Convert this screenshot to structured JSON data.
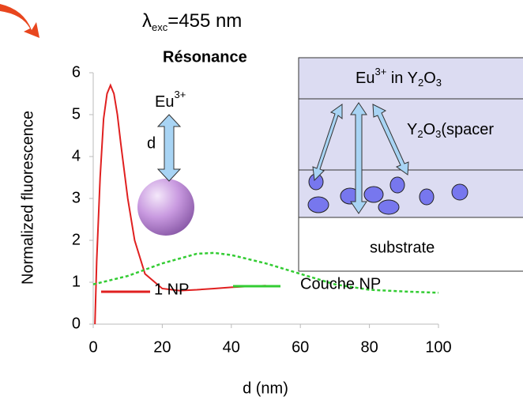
{
  "chart_data": {
    "type": "line",
    "title": {
      "base": "λ",
      "sub": "exc",
      "rest": "=455 nm"
    },
    "subtitle": "Résonance",
    "subtitle_color": "#e8461e",
    "x_label": "d (nm)",
    "y_label": "Normalized fluorescence",
    "xlim": [
      0,
      100
    ],
    "ylim": [
      0,
      6
    ],
    "xticks": [
      0,
      20,
      40,
      60,
      80,
      100
    ],
    "yticks": [
      0,
      1,
      2,
      3,
      4,
      5,
      6
    ],
    "series": [
      {
        "name": "1 NP",
        "color": "#e02020",
        "dashed": false,
        "x": [
          0.5,
          1,
          2,
          3,
          4,
          5,
          6,
          7,
          8,
          10,
          12,
          15,
          20,
          25,
          30,
          35,
          40,
          45,
          50
        ],
        "values": [
          0,
          1.5,
          3.5,
          4.9,
          5.5,
          5.7,
          5.5,
          5.0,
          4.3,
          3.0,
          2.0,
          1.2,
          0.85,
          0.8,
          0.82,
          0.85,
          0.88,
          0.9,
          0.92
        ]
      },
      {
        "name": "Couche NP",
        "color": "#33cc33",
        "dashed": true,
        "x": [
          0,
          10,
          20,
          30,
          35,
          40,
          50,
          60,
          70,
          80,
          90,
          100
        ],
        "values": [
          0.95,
          1.15,
          1.45,
          1.68,
          1.7,
          1.65,
          1.45,
          1.2,
          0.95,
          0.82,
          0.78,
          0.75
        ]
      }
    ],
    "annotations": {
      "ion": {
        "base": "Eu",
        "sup": "3+"
      },
      "distance": "d",
      "layer_top": [
        "Eu",
        "3+",
        " in Y",
        "2",
        "O",
        "3"
      ],
      "layer_spacer": [
        "Y",
        "2",
        "O",
        "3",
        "(spacer"
      ],
      "layer_substrate": "substrate"
    }
  }
}
